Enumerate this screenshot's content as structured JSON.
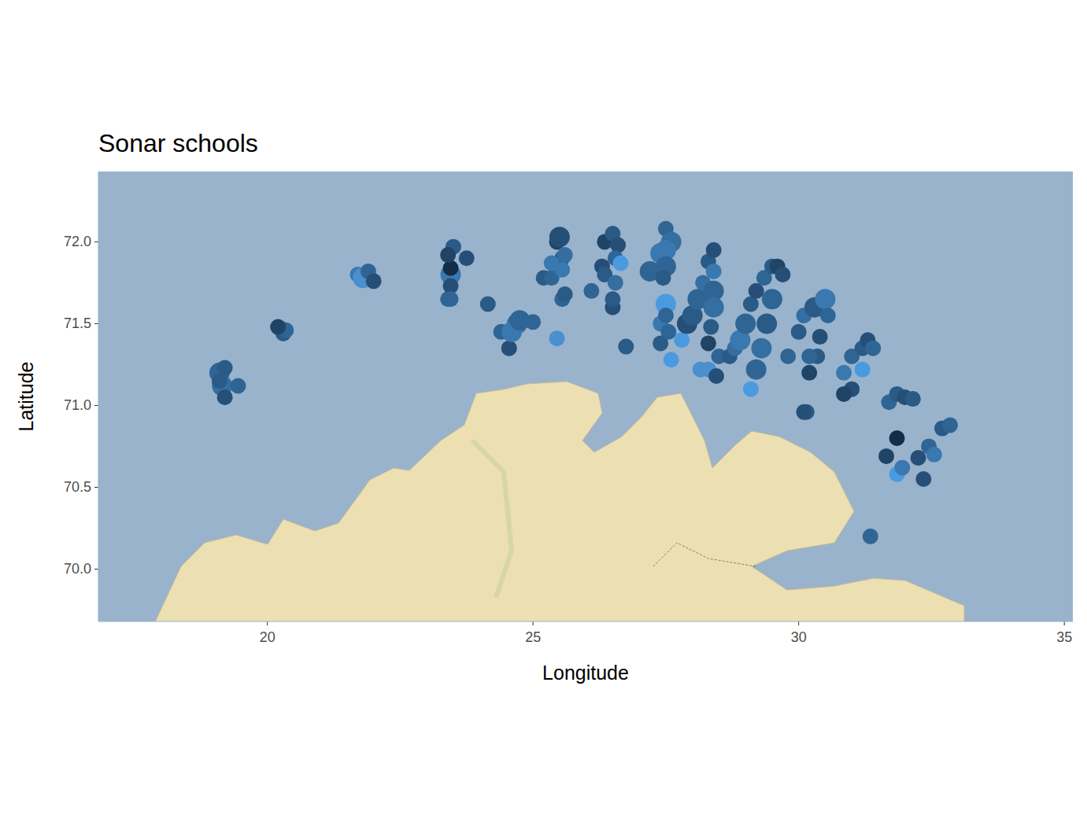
{
  "chart_data": {
    "type": "scatter",
    "title": "Sonar schools",
    "x_label": "Longitude",
    "y_label": "Latitude",
    "xlim": [
      16.82,
      35.16
    ],
    "ylim": [
      69.68,
      72.43
    ],
    "xticks": [
      20,
      25,
      30,
      35
    ],
    "yticks": [
      {
        "value": 70,
        "label": "70.0"
      },
      70.5,
      {
        "value": 71,
        "label": "71.0"
      },
      71.5,
      {
        "value": 72,
        "label": "72.0"
      }
    ],
    "grid": false,
    "x": [
      19.1,
      19.2,
      19.15,
      19.2,
      19.45,
      19.1,
      20.25,
      20.3,
      20.35,
      20.2,
      21.7,
      21.8,
      21.9,
      22.0,
      23.4,
      23.45,
      23.45,
      23.45,
      23.5,
      23.4,
      23.75,
      23.45,
      24.15,
      24.4,
      24.55,
      24.7,
      24.6,
      25.0,
      24.75,
      25.2,
      25.35,
      25.45,
      25.5,
      25.55,
      25.6,
      25.55,
      25.55,
      25.6,
      25.45,
      25.35,
      26.1,
      26.3,
      26.35,
      26.35,
      26.5,
      26.6,
      26.55,
      26.65,
      26.5,
      26.5,
      26.55,
      26.75,
      27.2,
      27.4,
      27.5,
      27.6,
      27.5,
      27.5,
      27.45,
      27.5,
      27.4,
      27.5,
      27.4,
      27.6,
      27.55,
      27.8,
      27.9,
      28.0,
      28.1,
      28.2,
      28.3,
      28.4,
      28.4,
      28.4,
      28.4,
      28.35,
      28.3,
      28.3,
      28.45,
      28.15,
      28.5,
      28.7,
      28.8,
      28.9,
      29.0,
      29.1,
      29.2,
      29.35,
      29.5,
      29.6,
      29.7,
      29.5,
      29.4,
      29.3,
      29.2,
      29.1,
      29.8,
      30.0,
      30.1,
      30.3,
      30.5,
      30.55,
      30.4,
      30.35,
      30.2,
      30.2,
      30.15,
      30.1,
      30.85,
      31.0,
      31.2,
      31.3,
      31.4,
      31.2,
      31.0,
      30.85,
      31.7,
      31.85,
      32.0,
      32.15,
      31.85,
      31.65,
      31.85,
      31.95,
      32.25,
      32.45,
      32.55,
      32.7,
      32.85,
      32.35,
      31.35
    ],
    "values": [
      71.2,
      71.23,
      71.12,
      71.05,
      71.12,
      71.15,
      71.47,
      71.44,
      71.46,
      71.48,
      71.8,
      71.78,
      71.82,
      71.76,
      71.65,
      71.8,
      71.73,
      71.84,
      71.97,
      71.92,
      71.9,
      71.65,
      71.62,
      71.45,
      71.35,
      71.5,
      71.45,
      71.51,
      71.52,
      71.78,
      71.78,
      72.0,
      72.03,
      71.9,
      71.92,
      71.83,
      71.65,
      71.68,
      71.41,
      71.87,
      71.7,
      71.85,
      71.8,
      72.0,
      72.05,
      71.98,
      71.9,
      71.87,
      71.6,
      71.65,
      71.75,
      71.36,
      71.82,
      71.93,
      72.08,
      72.0,
      71.95,
      71.85,
      71.78,
      71.62,
      71.5,
      71.55,
      71.38,
      71.28,
      71.45,
      71.4,
      71.5,
      71.55,
      71.65,
      71.75,
      71.88,
      71.95,
      71.82,
      71.7,
      71.6,
      71.48,
      71.38,
      71.22,
      71.18,
      71.22,
      71.3,
      71.3,
      71.35,
      71.4,
      71.5,
      71.62,
      71.7,
      71.78,
      71.85,
      71.85,
      71.8,
      71.65,
      71.5,
      71.35,
      71.22,
      71.1,
      71.3,
      71.45,
      71.55,
      71.6,
      71.65,
      71.55,
      71.42,
      71.3,
      71.2,
      71.3,
      70.96,
      70.96,
      71.2,
      71.3,
      71.35,
      71.4,
      71.35,
      71.22,
      71.1,
      71.07,
      71.02,
      71.07,
      71.05,
      71.04,
      70.8,
      70.69,
      70.58,
      70.62,
      70.68,
      70.75,
      70.7,
      70.86,
      70.88,
      70.55,
      70.2
    ],
    "size": [
      3,
      2,
      3,
      2,
      2,
      2,
      2,
      2,
      2,
      2,
      2,
      3,
      2,
      2,
      2,
      3,
      2,
      2,
      2,
      2,
      2,
      2,
      2,
      2,
      2,
      3,
      3,
      2,
      3,
      2,
      2,
      2,
      3,
      2,
      2,
      2,
      2,
      2,
      2,
      2,
      2,
      2,
      2,
      2,
      2,
      2,
      2,
      2,
      2,
      2,
      2,
      2,
      3,
      3,
      2,
      3,
      3,
      3,
      2,
      3,
      2,
      2,
      2,
      2,
      2,
      2,
      3,
      3,
      3,
      2,
      2,
      2,
      2,
      3,
      3,
      2,
      2,
      2,
      2,
      2,
      2,
      2,
      2,
      3,
      3,
      2,
      2,
      2,
      2,
      2,
      2,
      3,
      3,
      3,
      3,
      2,
      2,
      2,
      2,
      3,
      3,
      2,
      2,
      2,
      2,
      2,
      2,
      2,
      2,
      2,
      2,
      2,
      2,
      2,
      2,
      2,
      2,
      2,
      2,
      2,
      2,
      2,
      2,
      2,
      2,
      2,
      2,
      2,
      2,
      2,
      2
    ],
    "colors": [
      "#2f6594",
      "#2a5a86",
      "#356ea0",
      "#264f77",
      "#2f6594",
      "#2a5a86",
      "#264f77",
      "#2a5a86",
      "#2f6594",
      "#1f4466",
      "#3a78b0",
      "#4a8fcf",
      "#2f6594",
      "#264f77",
      "#2f6594",
      "#3a78b0",
      "#264f77",
      "#132d48",
      "#2a5a86",
      "#1f4466",
      "#264f77",
      "#2f6594",
      "#2a5a86",
      "#2f6594",
      "#264f77",
      "#356ea0",
      "#3a78b0",
      "#2f6594",
      "#2f6594",
      "#2a5a86",
      "#2f6594",
      "#1f4466",
      "#264f77",
      "#2a5a86",
      "#356ea0",
      "#3a78b0",
      "#2f6594",
      "#2a5a86",
      "#4a8fcf",
      "#3a78b0",
      "#2f6594",
      "#264f77",
      "#2a5a86",
      "#1f4466",
      "#2a5a86",
      "#264f77",
      "#2f6594",
      "#4a9ae0",
      "#264f77",
      "#2a5a86",
      "#356ea0",
      "#2a5a86",
      "#2f6594",
      "#3a78b0",
      "#2f6594",
      "#356ea0",
      "#3a78b0",
      "#2f6594",
      "#2a5a86",
      "#4a9ae0",
      "#3a78b0",
      "#2f6594",
      "#2a5a86",
      "#4a9ae0",
      "#2f6594",
      "#4a9ae0",
      "#264f77",
      "#2a5a86",
      "#2f6594",
      "#356ea0",
      "#2a5a86",
      "#264f77",
      "#3a78b0",
      "#2f6594",
      "#356ea0",
      "#2a5a86",
      "#1f4466",
      "#4a8fcf",
      "#264f77",
      "#4a8fcf",
      "#2f6594",
      "#2a5a86",
      "#356ea0",
      "#3a78b0",
      "#2f6594",
      "#2a5a86",
      "#264f77",
      "#2f6594",
      "#2a5a86",
      "#1f4466",
      "#264f77",
      "#2f6594",
      "#2a5a86",
      "#356ea0",
      "#2f6594",
      "#4a9ae0",
      "#2f6594",
      "#2a5a86",
      "#356ea0",
      "#2a5a86",
      "#3a78b0",
      "#2f6594",
      "#264f77",
      "#2a5a86",
      "#1f4466",
      "#2f6594",
      "#2a5a86",
      "#264f77",
      "#3a78b0",
      "#2f6594",
      "#2a5a86",
      "#264f77",
      "#2f6594",
      "#4a9ae0",
      "#264f77",
      "#1f4466",
      "#2f6594",
      "#2a5a86",
      "#264f77",
      "#2a5a86",
      "#132d48",
      "#1f4466",
      "#4a9ae0",
      "#3a78b0",
      "#264f77",
      "#2f6594",
      "#3a78b0",
      "#2a5a86",
      "#2f6594",
      "#264f77",
      "#2f6594"
    ]
  }
}
